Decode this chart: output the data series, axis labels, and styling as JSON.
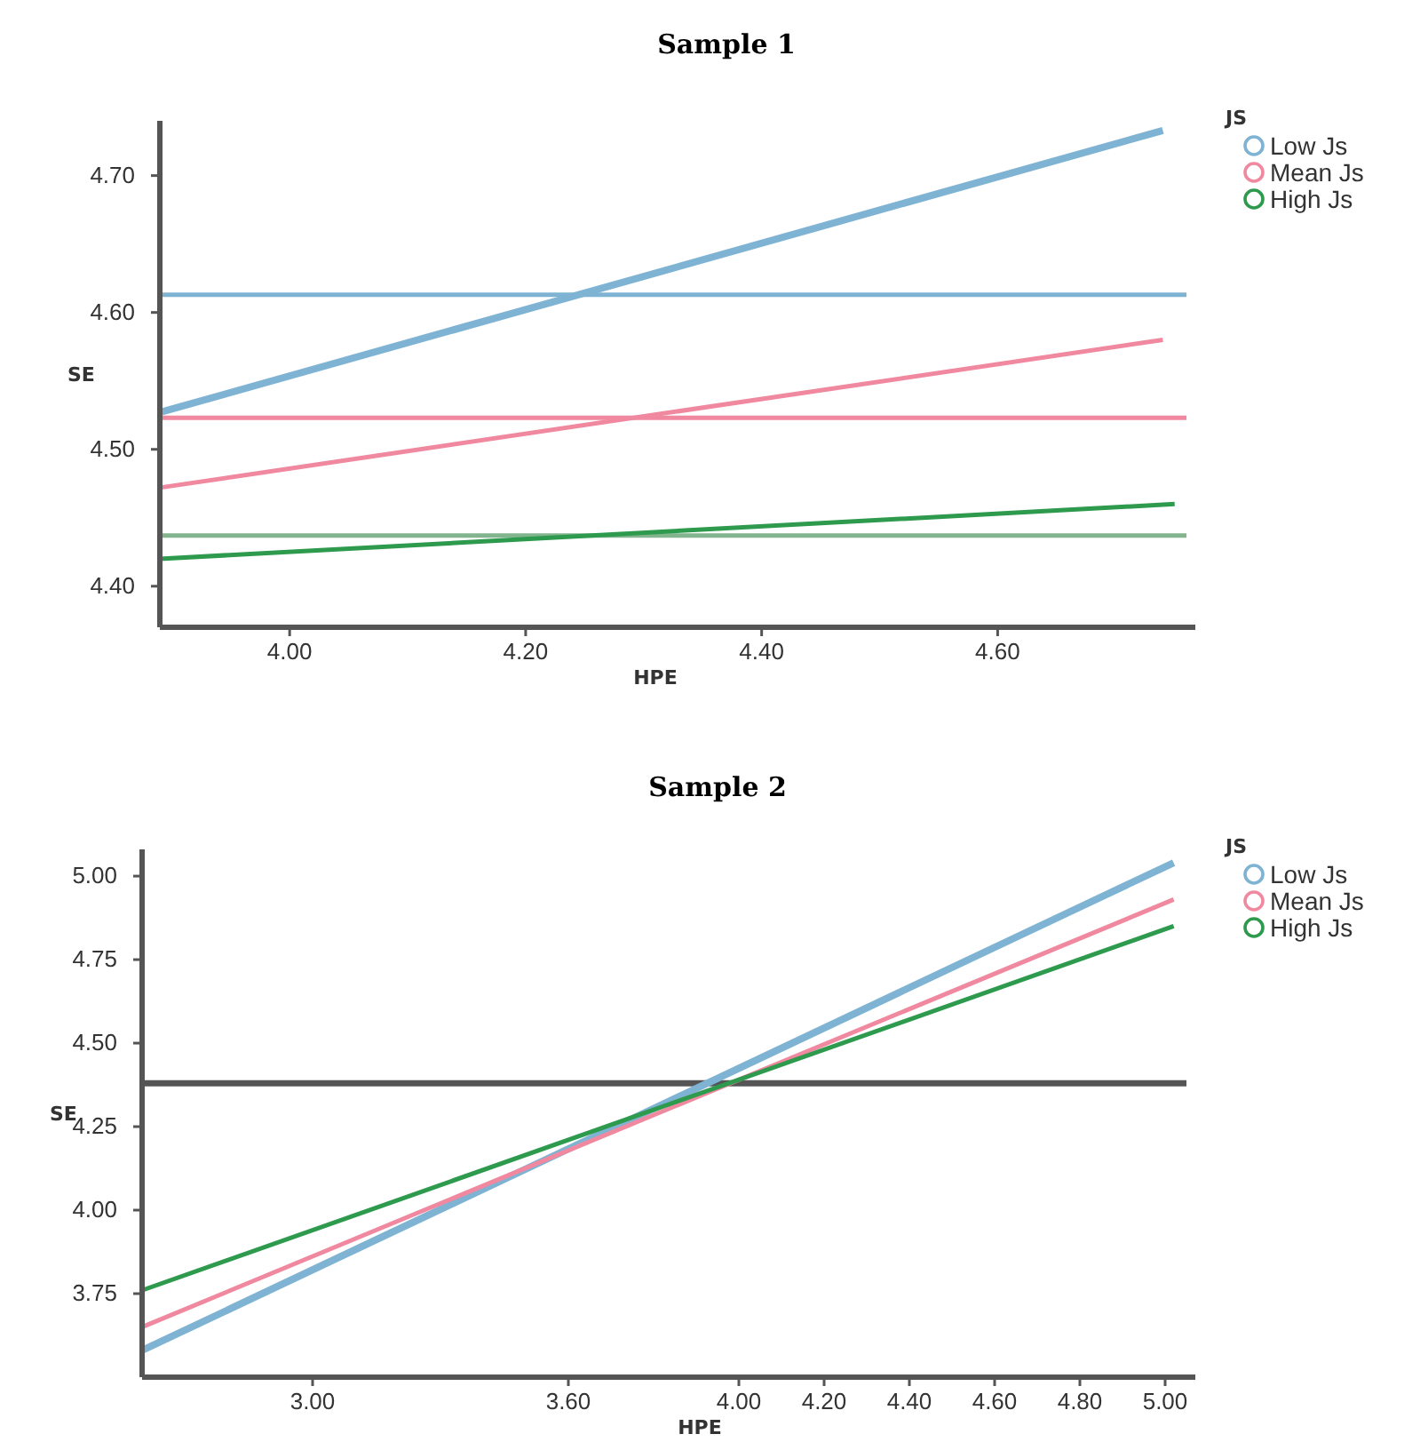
{
  "chart_data": [
    {
      "type": "line",
      "title": "Sample 1",
      "xlabel": "HPE",
      "ylabel": "SE",
      "legend_title": "JS",
      "legend": "top right",
      "marker": "none",
      "line_style": "solid",
      "grid": false,
      "xlim": [
        3.89,
        4.76
      ],
      "xticks": [
        {
          "value": 4.0,
          "label": "4.00"
        },
        {
          "value": 4.2,
          "label": "4.20"
        },
        {
          "value": 4.4,
          "label": "4.40"
        },
        {
          "value": 4.6,
          "label": "4.60"
        }
      ],
      "ylim": [
        4.37,
        4.74
      ],
      "yticks": [
        {
          "value": 4.4,
          "label": "4.40"
        },
        {
          "value": 4.5,
          "label": "4.50"
        },
        {
          "value": 4.6,
          "label": "4.60"
        },
        {
          "value": 4.7,
          "label": "4.70"
        }
      ],
      "ref_lines": [
        {
          "axis": "y",
          "value": 4.613,
          "color": "#7fb3d3"
        },
        {
          "axis": "y",
          "value": 4.523,
          "color": "#f0899f"
        },
        {
          "axis": "y",
          "value": 4.437,
          "color": "#82b58e"
        }
      ],
      "series": [
        {
          "name": "Low Js",
          "color": "#7fb3d3",
          "x": [
            3.89,
            4.74
          ],
          "values": [
            4.527,
            4.733
          ]
        },
        {
          "name": "Mean Js",
          "color": "#f0899f",
          "x": [
            3.89,
            4.74
          ],
          "values": [
            4.472,
            4.58
          ]
        },
        {
          "name": "High Js",
          "color": "#2e9a4e",
          "x": [
            3.89,
            4.75
          ],
          "values": [
            4.42,
            4.46
          ]
        }
      ]
    },
    {
      "type": "line",
      "title": "Sample 2",
      "xlabel": "HPE",
      "ylabel": "SE",
      "legend_title": "JS",
      "legend": "top right",
      "marker": "none",
      "line_style": "solid",
      "grid": false,
      "xlim": [
        2.6,
        5.05
      ],
      "xticks": [
        {
          "value": 3.0,
          "label": "3.00"
        },
        {
          "value": 3.6,
          "label": "3.60"
        },
        {
          "value": 4.0,
          "label": "4.00"
        },
        {
          "value": 4.2,
          "label": "4.20"
        },
        {
          "value": 4.4,
          "label": "4.40"
        },
        {
          "value": 4.6,
          "label": "4.60"
        },
        {
          "value": 4.8,
          "label": "4.80"
        },
        {
          "value": 5.0,
          "label": "5.00"
        }
      ],
      "ylim": [
        3.5,
        5.08
      ],
      "yticks": [
        {
          "value": 3.75,
          "label": "3.75"
        },
        {
          "value": 4.0,
          "label": "4.00"
        },
        {
          "value": 4.25,
          "label": "4.25"
        },
        {
          "value": 4.5,
          "label": "4.50"
        },
        {
          "value": 4.75,
          "label": "4.75"
        },
        {
          "value": 5.0,
          "label": "5.00"
        }
      ],
      "ref_lines": [
        {
          "axis": "y",
          "value": 4.38,
          "color": "#555555"
        }
      ],
      "series": [
        {
          "name": "Low Js",
          "color": "#7fb3d3",
          "x": [
            2.6,
            5.02
          ],
          "values": [
            3.58,
            5.04
          ]
        },
        {
          "name": "Mean Js",
          "color": "#f0899f",
          "x": [
            2.6,
            5.02
          ],
          "values": [
            3.65,
            4.93
          ]
        },
        {
          "name": "High Js",
          "color": "#2e9a4e",
          "x": [
            2.6,
            5.02
          ],
          "values": [
            3.76,
            4.85
          ]
        }
      ]
    }
  ]
}
